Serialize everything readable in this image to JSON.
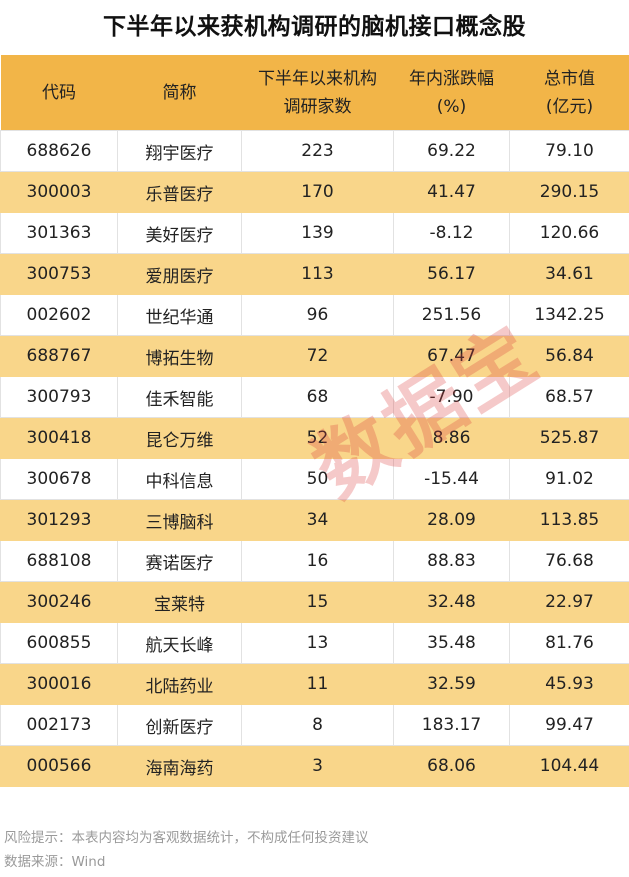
{
  "title": "下半年以来获机构调研的脑机接口概念股",
  "watermark": "数据宝",
  "footer": {
    "risk": "风险提示：本表内容均为客观数据统计，不构成任何投资建议",
    "source": "数据来源：Wind"
  },
  "colors": {
    "header": "#F2B548",
    "stripe": "#F9D68A",
    "watermark": "#DC3C3C"
  },
  "chart_data": {
    "type": "table",
    "title": "下半年以来获机构调研的脑机接口概念股",
    "columns": [
      [
        "代码"
      ],
      [
        "简称"
      ],
      [
        "下半年以来机构",
        "调研家数"
      ],
      [
        "年内涨跌幅",
        "(%)"
      ],
      [
        "总市值",
        "(亿元)"
      ]
    ],
    "rows": [
      [
        "688626",
        "翔宇医疗",
        "223",
        "69.22",
        "79.10"
      ],
      [
        "300003",
        "乐普医疗",
        "170",
        "41.47",
        "290.15"
      ],
      [
        "301363",
        "美好医疗",
        "139",
        "-8.12",
        "120.66"
      ],
      [
        "300753",
        "爱朋医疗",
        "113",
        "56.17",
        "34.61"
      ],
      [
        "002602",
        "世纪华通",
        "96",
        "251.56",
        "1342.25"
      ],
      [
        "688767",
        "博拓生物",
        "72",
        "67.47",
        "56.84"
      ],
      [
        "300793",
        "佳禾智能",
        "68",
        "-7.90",
        "68.57"
      ],
      [
        "300418",
        "昆仑万维",
        "52",
        "8.86",
        "525.87"
      ],
      [
        "300678",
        "中科信息",
        "50",
        "-15.44",
        "91.02"
      ],
      [
        "301293",
        "三博脑科",
        "34",
        "28.09",
        "113.85"
      ],
      [
        "688108",
        "赛诺医疗",
        "16",
        "88.83",
        "76.68"
      ],
      [
        "300246",
        "宝莱特",
        "15",
        "32.48",
        "22.97"
      ],
      [
        "600855",
        "航天长峰",
        "13",
        "35.48",
        "81.76"
      ],
      [
        "300016",
        "北陆药业",
        "11",
        "32.59",
        "45.93"
      ],
      [
        "002173",
        "创新医疗",
        "8",
        "183.17",
        "99.47"
      ],
      [
        "000566",
        "海南海药",
        "3",
        "68.06",
        "104.44"
      ]
    ],
    "source": "Wind"
  }
}
